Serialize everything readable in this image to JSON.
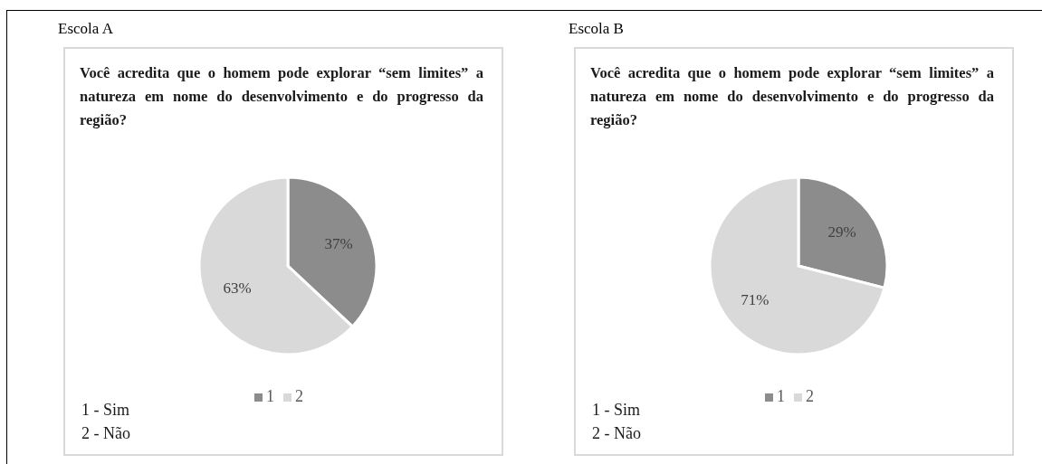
{
  "chart_data": [
    {
      "type": "pie",
      "title": "Escola A",
      "subtitle": "Você acredita que o homem pode explorar “sem limites” a natureza em nome do desenvolvimento e do progresso da região?",
      "categories": [
        "1",
        "2"
      ],
      "values": [
        37,
        63
      ],
      "value_labels": [
        "37%",
        "63%"
      ],
      "colors": [
        "#8c8c8c",
        "#d9d9d9"
      ],
      "legend": "bottom",
      "annotations": [
        "1 - Sim",
        "2 - Não"
      ]
    },
    {
      "type": "pie",
      "title": "Escola B",
      "subtitle": "Você acredita que o homem pode explorar “sem limites” a natureza em nome do desenvolvimento e do progresso da região?",
      "categories": [
        "1",
        "2"
      ],
      "values": [
        29,
        71
      ],
      "value_labels": [
        "29%",
        "71%"
      ],
      "colors": [
        "#8c8c8c",
        "#d9d9d9"
      ],
      "legend": "bottom",
      "annotations": [
        "1 - Sim",
        "2 - Não"
      ]
    }
  ]
}
